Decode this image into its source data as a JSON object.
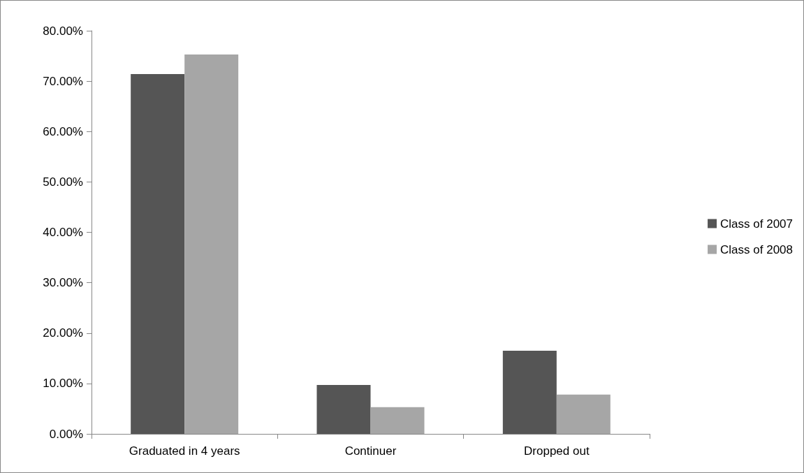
{
  "chart_data": {
    "type": "bar",
    "categories": [
      "Graduated in 4 years",
      "Continuer",
      "Dropped out"
    ],
    "series": [
      {
        "name": "Class of 2007",
        "color": "#555555",
        "values": [
          71.4,
          9.7,
          16.5
        ]
      },
      {
        "name": "Class of 2008",
        "color": "#a6a6a6",
        "values": [
          75.3,
          5.3,
          7.8
        ]
      }
    ],
    "ylim": [
      0,
      80
    ],
    "yticks": [
      {
        "value": 0,
        "label": "0.00%"
      },
      {
        "value": 10,
        "label": "10.00%"
      },
      {
        "value": 20,
        "label": "20.00%"
      },
      {
        "value": 30,
        "label": "30.00%"
      },
      {
        "value": 40,
        "label": "40.00%"
      },
      {
        "value": 50,
        "label": "50.00%"
      },
      {
        "value": 60,
        "label": "60.00%"
      },
      {
        "value": 70,
        "label": "70.00%"
      },
      {
        "value": 80,
        "label": "80.00%"
      }
    ],
    "grid": false,
    "legend": "right"
  }
}
